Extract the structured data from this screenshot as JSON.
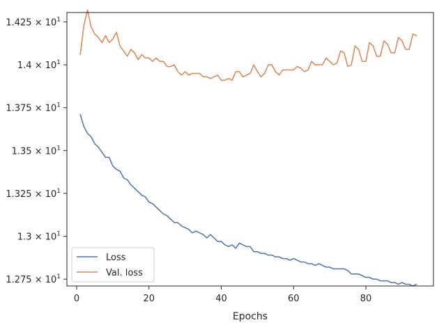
{
  "chart_data": {
    "type": "line",
    "xlabel": "Epochs",
    "ylabel": "",
    "xlim": [
      -2.7,
      98.7
    ],
    "ylim": [
      12.71,
      14.305
    ],
    "x_ticks": [
      0,
      20,
      40,
      60,
      80
    ],
    "y_ticks": [
      {
        "value": 12.75,
        "mantissa": "1.275",
        "exp": "1"
      },
      {
        "value": 13.0,
        "mantissa": "1.3",
        "exp": "1"
      },
      {
        "value": 13.25,
        "mantissa": "1.325",
        "exp": "1"
      },
      {
        "value": 13.5,
        "mantissa": "1.35",
        "exp": "1"
      },
      {
        "value": 13.75,
        "mantissa": "1.375",
        "exp": "1"
      },
      {
        "value": 14.0,
        "mantissa": "1.4",
        "exp": "1"
      },
      {
        "value": 14.25,
        "mantissa": "1.425",
        "exp": "1"
      }
    ],
    "scale_base": "10",
    "grid": false,
    "legend_position": "lower-left",
    "series": [
      {
        "name": "Loss",
        "color": "#4c72b0",
        "x": [
          1,
          2,
          3,
          4,
          5,
          6,
          7,
          8,
          9,
          10,
          11,
          12,
          13,
          14,
          15,
          16,
          17,
          18,
          19,
          20,
          21,
          22,
          23,
          24,
          25,
          26,
          27,
          28,
          29,
          30,
          31,
          32,
          33,
          34,
          35,
          36,
          37,
          38,
          39,
          40,
          41,
          42,
          43,
          44,
          45,
          46,
          47,
          48,
          49,
          50,
          51,
          52,
          53,
          54,
          55,
          56,
          57,
          58,
          59,
          60,
          61,
          62,
          63,
          64,
          65,
          66,
          67,
          68,
          69,
          70,
          71,
          72,
          73,
          74,
          75,
          76,
          77,
          78,
          79,
          80,
          81,
          82,
          83,
          84,
          85,
          86,
          87,
          88,
          89,
          90,
          91,
          92,
          93,
          94
        ],
        "values": [
          13.71,
          13.64,
          13.6,
          13.58,
          13.54,
          13.52,
          13.49,
          13.46,
          13.46,
          13.41,
          13.39,
          13.38,
          13.34,
          13.33,
          13.3,
          13.28,
          13.26,
          13.24,
          13.23,
          13.2,
          13.19,
          13.17,
          13.15,
          13.13,
          13.12,
          13.1,
          13.08,
          13.08,
          13.06,
          13.05,
          13.04,
          13.02,
          13.03,
          13.02,
          13.01,
          12.99,
          13.01,
          12.99,
          12.97,
          12.97,
          12.95,
          12.94,
          12.95,
          12.93,
          12.96,
          12.95,
          12.94,
          12.94,
          12.91,
          12.91,
          12.9,
          12.9,
          12.89,
          12.89,
          12.88,
          12.88,
          12.87,
          12.87,
          12.86,
          12.87,
          12.86,
          12.85,
          12.85,
          12.84,
          12.84,
          12.83,
          12.84,
          12.83,
          12.82,
          12.82,
          12.81,
          12.81,
          12.81,
          12.81,
          12.8,
          12.78,
          12.78,
          12.78,
          12.77,
          12.76,
          12.76,
          12.75,
          12.75,
          12.74,
          12.74,
          12.74,
          12.73,
          12.73,
          12.72,
          12.73,
          12.72,
          12.72,
          12.71,
          12.72
        ]
      },
      {
        "name": "Val. loss",
        "color": "#dd8452",
        "x": [
          1,
          2,
          3,
          4,
          5,
          6,
          7,
          8,
          9,
          10,
          11,
          12,
          13,
          14,
          15,
          16,
          17,
          18,
          19,
          20,
          21,
          22,
          23,
          24,
          25,
          26,
          27,
          28,
          29,
          30,
          31,
          32,
          33,
          34,
          35,
          36,
          37,
          38,
          39,
          40,
          41,
          42,
          43,
          44,
          45,
          46,
          47,
          48,
          49,
          50,
          51,
          52,
          53,
          54,
          55,
          56,
          57,
          58,
          59,
          60,
          61,
          62,
          63,
          64,
          65,
          66,
          67,
          68,
          69,
          70,
          71,
          72,
          73,
          74,
          75,
          76,
          77,
          78,
          79,
          80,
          81,
          82,
          83,
          84,
          85,
          86,
          87,
          88,
          89,
          90,
          91,
          92,
          93,
          94
        ],
        "values": [
          14.06,
          14.23,
          14.32,
          14.22,
          14.18,
          14.16,
          14.13,
          14.17,
          14.13,
          14.15,
          14.19,
          14.11,
          14.08,
          14.05,
          14.09,
          14.07,
          14.03,
          14.06,
          14.04,
          14.04,
          14.02,
          14.04,
          14.02,
          14.02,
          13.99,
          13.99,
          14.0,
          13.96,
          13.94,
          13.96,
          13.94,
          13.95,
          13.95,
          13.95,
          13.93,
          13.93,
          13.92,
          13.93,
          13.94,
          13.91,
          13.91,
          13.92,
          13.91,
          13.96,
          13.96,
          13.93,
          13.94,
          13.95,
          14.0,
          13.96,
          13.93,
          13.95,
          14.0,
          14.0,
          13.96,
          13.94,
          13.97,
          13.97,
          13.97,
          13.97,
          13.99,
          13.98,
          13.96,
          13.97,
          14.02,
          14.0,
          14.0,
          14.0,
          14.04,
          14.02,
          14.0,
          14.01,
          14.08,
          14.07,
          13.99,
          14.0,
          14.11,
          14.09,
          14.02,
          14.02,
          14.13,
          14.11,
          14.05,
          14.05,
          14.14,
          14.12,
          14.07,
          14.07,
          14.16,
          14.14,
          14.09,
          14.09,
          14.18,
          14.17
        ]
      }
    ]
  }
}
